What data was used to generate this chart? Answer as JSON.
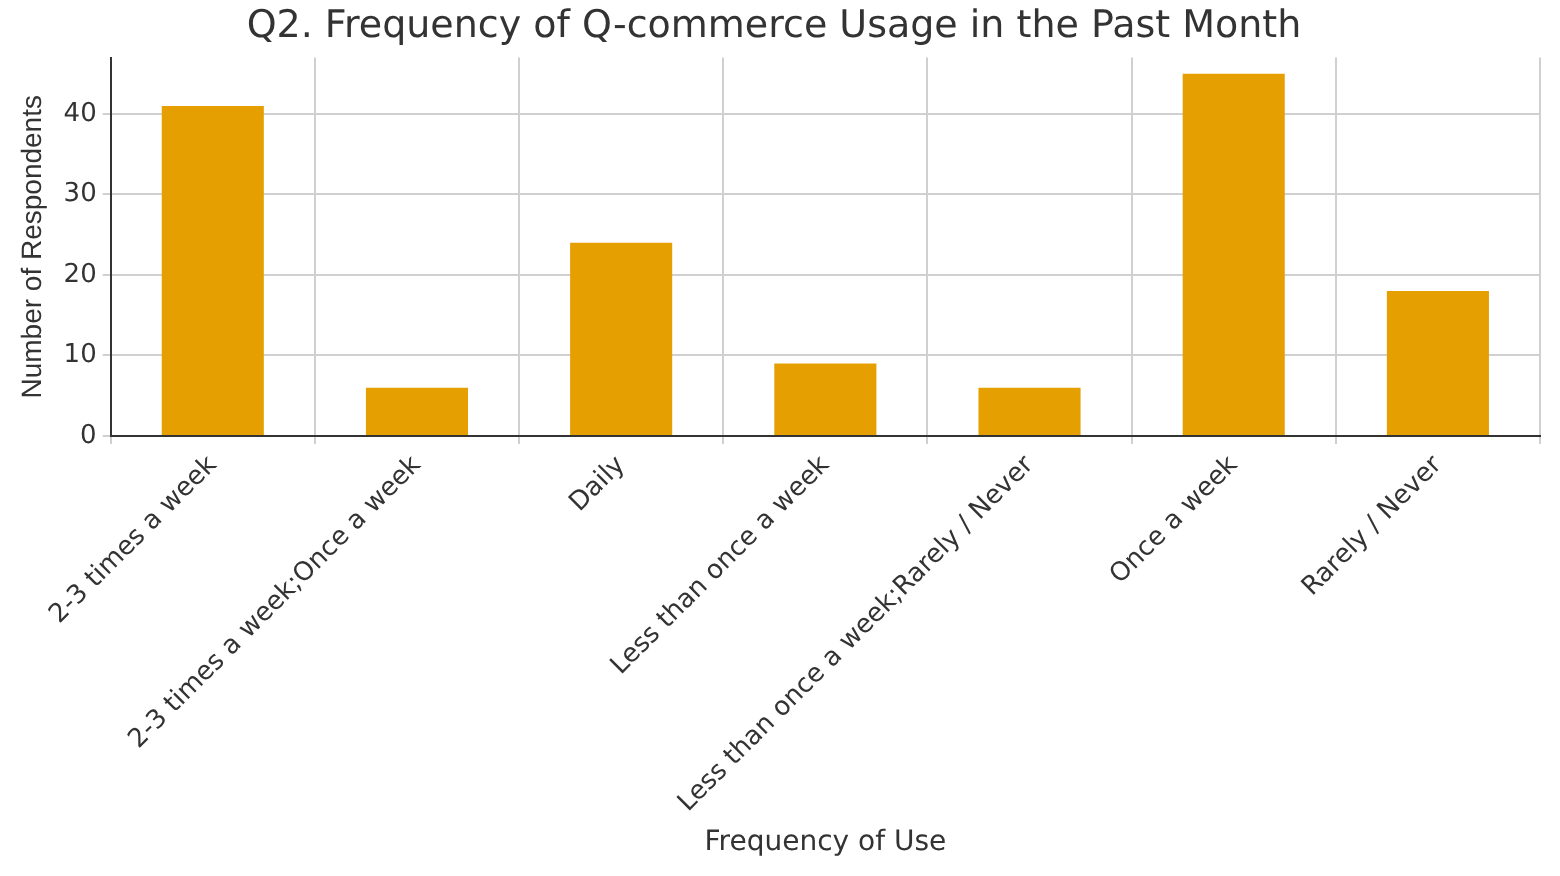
{
  "chart_data": {
    "type": "bar",
    "title": "Q2. Frequency of Q-commerce Usage in the Past Month",
    "xlabel": "Frequency of Use",
    "ylabel": "Number of Respondents",
    "categories": [
      "2-3 times a week",
      "2-3 times a week;Once a week",
      "Daily",
      "Less than once a week",
      "Less than once a week;Rarely / Never",
      "Once a week",
      "Rarely / Never"
    ],
    "values": [
      41,
      6,
      24,
      9,
      6,
      45,
      18
    ],
    "color": "#e69f00",
    "ylim": [
      0,
      47
    ],
    "yticks": [
      0,
      10,
      20,
      30,
      40
    ],
    "grid": true
  }
}
